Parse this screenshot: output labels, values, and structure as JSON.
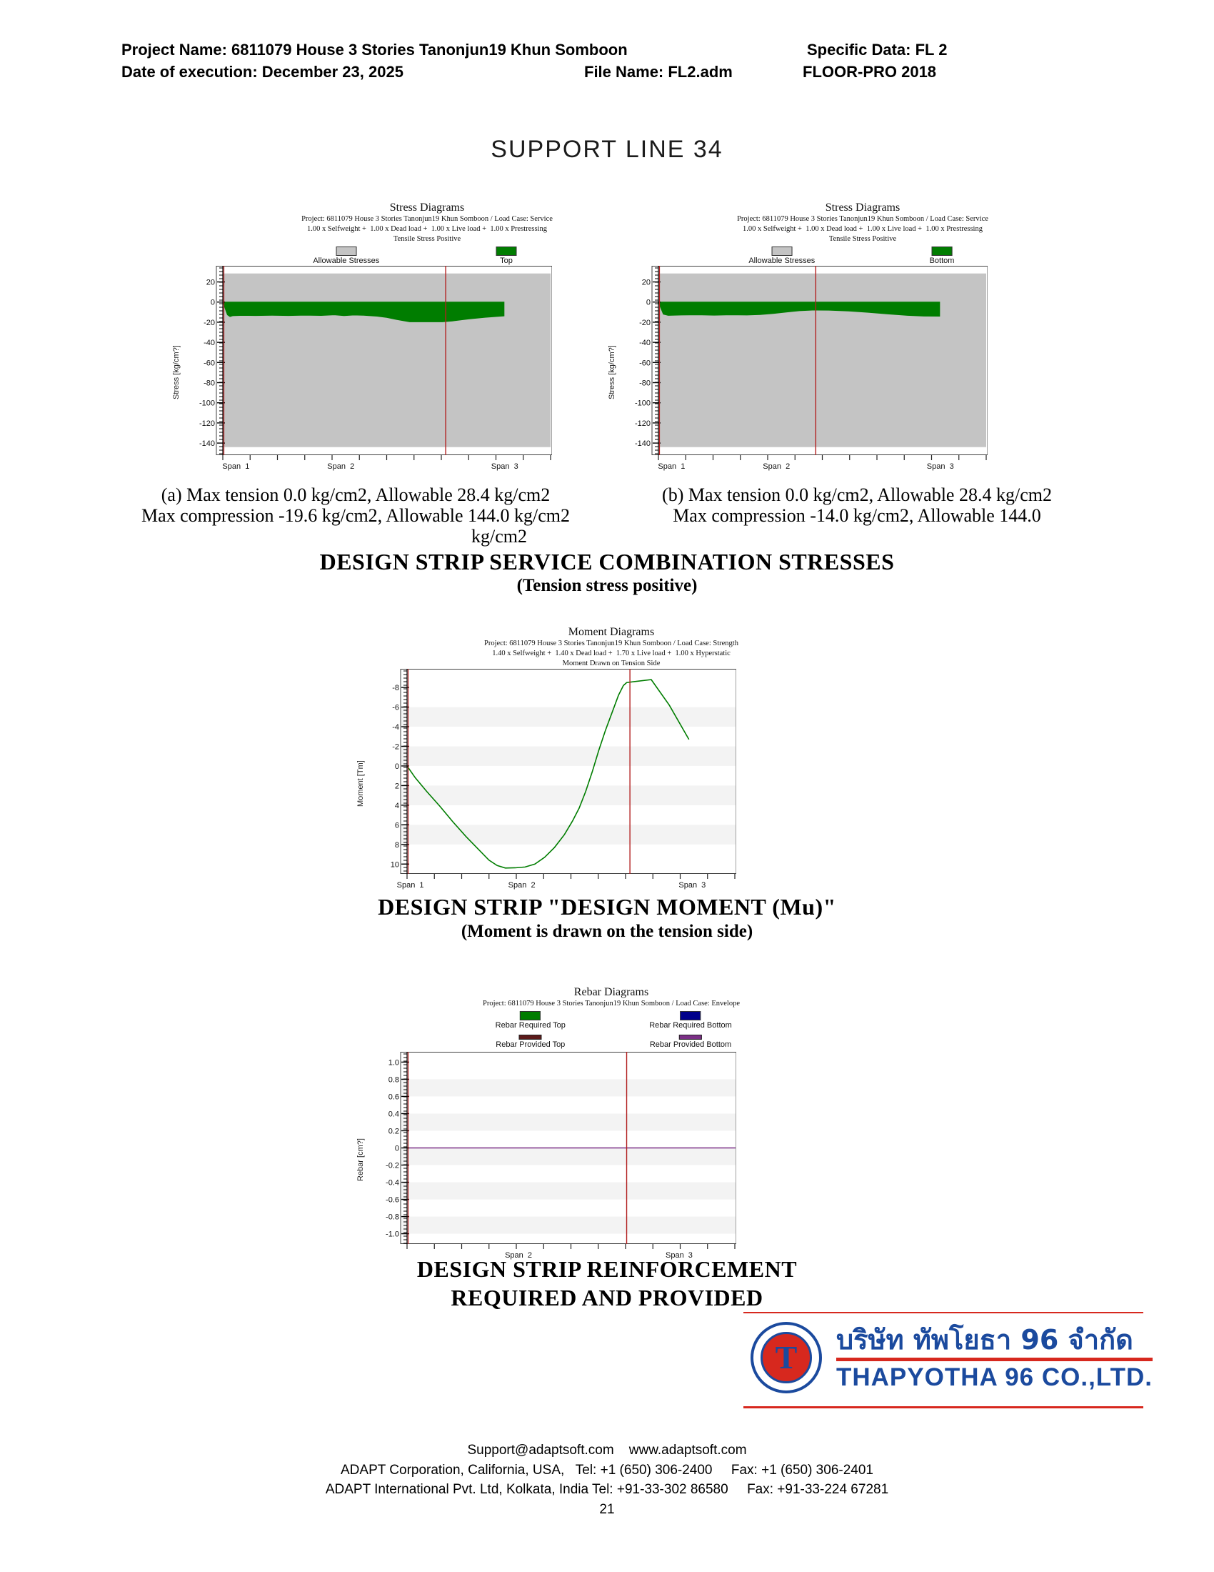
{
  "header": {
    "project": "Project Name: 6811079 House 3 Stories Tanonjun19 Khun Somboon",
    "specific_data": "Specific Data: FL 2",
    "date_line": "Date of execution: December 23, 2025",
    "file_name": "File Name: FL2.adm",
    "software": "FLOOR-PRO 2018"
  },
  "page_title": "SUPPORT LINE 34",
  "captions": {
    "a_line1": "(a) Max tension 0.0 kg/cm2, Allowable 28.4 kg/cm2",
    "a_line2": "Max compression -19.6 kg/cm2, Allowable 144.0 kg/cm2",
    "b_line1": "(b) Max tension 0.0 kg/cm2, Allowable 28.4 kg/cm2",
    "b_line2": "Max compression -14.0 kg/cm2, Allowable 144.0",
    "b_overflow": "kg/cm2"
  },
  "headings": {
    "stress_title": "DESIGN STRIP SERVICE COMBINATION STRESSES",
    "stress_sub": "(Tension stress positive)",
    "moment_title": "DESIGN STRIP \"DESIGN MOMENT (Mu)\"",
    "moment_sub": "(Moment is drawn on the tension side)",
    "rebar_title1": "DESIGN STRIP REINFORCEMENT",
    "rebar_title2": "REQUIRED AND PROVIDED"
  },
  "chart_data": [
    {
      "id": "stress-top",
      "type": "area",
      "title": "Stress Diagrams",
      "subtitle": "Project: 6811079 House 3 Stories Tanonjun19 Khun Somboon / Load Case: Service",
      "combo": "1.00 x Selfweight +  1.00 x Dead load +  1.00 x Live load +  1.00 x Prestressing",
      "note": "Tensile Stress Positive",
      "legend": [
        {
          "label": "Allowable Stresses",
          "color": "#c4c4c4"
        },
        {
          "label": "Top",
          "color": "#007d00"
        }
      ],
      "ylabel": "Stress [kg/cm?]",
      "yticks": [
        20,
        0,
        -20,
        -40,
        -60,
        -80,
        -100,
        -120,
        -140
      ],
      "ylim": [
        36,
        -152
      ],
      "allowable_band": [
        28.4,
        -144
      ],
      "band_color": "#c4c4c4",
      "series_color": "#007d00",
      "red": "#b22020",
      "axis_red_line": true,
      "red_line_x": 0.68,
      "outline": [
        [
          0,
          0
        ],
        [
          0.858,
          0
        ],
        [
          0.858,
          -13.8
        ],
        [
          0.8,
          -15.2
        ],
        [
          0.75,
          -16.8
        ],
        [
          0.7,
          -18.8
        ],
        [
          0.67,
          -19.6
        ],
        [
          0.57,
          -19.6
        ],
        [
          0.53,
          -17.3
        ],
        [
          0.5,
          -15.3
        ],
        [
          0.47,
          -14.0
        ],
        [
          0.43,
          -13.1
        ],
        [
          0.4,
          -12.9
        ],
        [
          0.37,
          -13.5
        ],
        [
          0.34,
          -12.7
        ],
        [
          0.3,
          -13.3
        ],
        [
          0.25,
          -13.0
        ],
        [
          0.2,
          -13.4
        ],
        [
          0.15,
          -13.1
        ],
        [
          0.1,
          -13.4
        ],
        [
          0.06,
          -13.2
        ],
        [
          0.03,
          -13.6
        ],
        [
          0.022,
          -14.4
        ],
        [
          0.014,
          -12.6
        ],
        [
          0,
          0
        ]
      ],
      "span_labels": [
        {
          "label": "Span  1",
          "x": 0.04
        },
        {
          "label": "Span  2",
          "x": 0.36
        },
        {
          "label": "Span  3",
          "x": 0.86
        }
      ],
      "max_tension": 0.0,
      "max_compression": -19.6
    },
    {
      "id": "stress-bottom",
      "type": "area",
      "title": "Stress Diagrams",
      "subtitle": "Project: 6811079 House 3 Stories Tanonjun19 Khun Somboon / Load Case: Service",
      "combo": "1.00 x Selfweight +  1.00 x Dead load +  1.00 x Live load +  1.00 x Prestressing",
      "note": "Tensile Stress Positive",
      "legend": [
        {
          "label": "Allowable Stresses",
          "color": "#c4c4c4"
        },
        {
          "label": "Bottom",
          "color": "#007d00"
        }
      ],
      "ylabel": "Stress [kg/cm?]",
      "yticks": [
        20,
        0,
        -20,
        -40,
        -60,
        -80,
        -100,
        -120,
        -140
      ],
      "ylim": [
        36,
        -152
      ],
      "allowable_band": [
        28.4,
        -144
      ],
      "band_color": "#c4c4c4",
      "series_color": "#007d00",
      "red": "#b22020",
      "axis_red_line": true,
      "red_line_x": 0.48,
      "outline": [
        [
          0,
          0
        ],
        [
          0.858,
          0
        ],
        [
          0.858,
          -14.0
        ],
        [
          0.81,
          -13.9
        ],
        [
          0.76,
          -13.2
        ],
        [
          0.7,
          -11.8
        ],
        [
          0.64,
          -10.2
        ],
        [
          0.58,
          -8.9
        ],
        [
          0.52,
          -8.1
        ],
        [
          0.47,
          -8.0
        ],
        [
          0.43,
          -8.6
        ],
        [
          0.39,
          -9.9
        ],
        [
          0.35,
          -11.4
        ],
        [
          0.31,
          -12.4
        ],
        [
          0.27,
          -12.9
        ],
        [
          0.22,
          -12.7
        ],
        [
          0.17,
          -13.0
        ],
        [
          0.12,
          -12.7
        ],
        [
          0.07,
          -12.9
        ],
        [
          0.03,
          -13.2
        ],
        [
          0.015,
          -12.0
        ],
        [
          0,
          0
        ]
      ],
      "span_labels": [
        {
          "label": "Span  1",
          "x": 0.04
        },
        {
          "label": "Span  2",
          "x": 0.36
        },
        {
          "label": "Span  3",
          "x": 0.86
        }
      ],
      "max_tension": 0.0,
      "max_compression": -14.0
    },
    {
      "id": "moment",
      "type": "line",
      "title": "Moment Diagrams",
      "subtitle": "Project: 6811079 House 3 Stories Tanonjun19 Khun Somboon / Load Case: Strength",
      "combo": "1.40 x Selfweight +  1.40 x Dead load +  1.70 x Live load +  1.00 x Hyperstatic",
      "note": "Moment Drawn on Tension Side",
      "ylabel": "Moment [Tm]",
      "yticks": [
        -8,
        -6,
        -4,
        -2,
        0,
        2,
        4,
        6,
        8,
        10
      ],
      "ylim": [
        -9.9,
        11
      ],
      "striped": true,
      "series_color": "#007d00",
      "red": "#b22020",
      "axis_red_line": true,
      "red_line_x": 0.68,
      "series": {
        "name": "Mu",
        "x": [
          0,
          0.025,
          0.06,
          0.1,
          0.14,
          0.18,
          0.215,
          0.25,
          0.275,
          0.3,
          0.33,
          0.36,
          0.39,
          0.42,
          0.45,
          0.48,
          0.505,
          0.525,
          0.545,
          0.565,
          0.585,
          0.605,
          0.625,
          0.645,
          0.66,
          0.67,
          0.745,
          0.8,
          0.86
        ],
        "y": [
          0,
          1.2,
          2.6,
          4.1,
          5.7,
          7.2,
          8.4,
          9.6,
          10.15,
          10.4,
          10.38,
          10.3,
          10.0,
          9.3,
          8.3,
          7.0,
          5.6,
          4.3,
          2.6,
          0.6,
          -1.6,
          -3.6,
          -5.4,
          -7.2,
          -8.2,
          -8.5,
          -8.8,
          -6.2,
          -2.7
        ]
      },
      "span_labels": [
        {
          "label": "Span  1",
          "x": 0.01
        },
        {
          "label": "Span  2",
          "x": 0.35
        },
        {
          "label": "Span  3",
          "x": 0.87
        }
      ]
    },
    {
      "id": "rebar",
      "type": "line",
      "title": "Rebar Diagrams",
      "subtitle": "Project: 6811079 House 3 Stories Tanonjun19 Khun Somboon / Load Case: Envelope",
      "legend": [
        {
          "label": "Rebar Required Top",
          "color": "#007d00",
          "style": "box"
        },
        {
          "label": "Rebar Required Bottom",
          "color": "#00008b",
          "style": "box"
        },
        {
          "label": "Rebar Provided Top",
          "color": "#5c1a1a",
          "style": "bar"
        },
        {
          "label": "Rebar Provided Bottom",
          "color": "#7b2f86",
          "style": "bar"
        }
      ],
      "ylabel": "Rebar [cm?]",
      "yticks": [
        1.0,
        0.8,
        0.6,
        0.4,
        0.2,
        0,
        -0.2,
        -0.4,
        -0.6,
        -0.8,
        -1.0
      ],
      "ytick_labels": [
        "1.0",
        "0.8",
        "0.6",
        "0.4",
        "0.2",
        "0",
        "-0.2",
        "-0.4",
        "-0.6",
        "-0.8",
        "-1.0"
      ],
      "ylim": [
        1.12,
        -1.12
      ],
      "striped": true,
      "series_color": "#007d00",
      "red": "#b22020",
      "axis_red_line": true,
      "red_line_x": 0.67,
      "zero_line_color": "#7b2f86",
      "series": {
        "name": "Rebar Provided Bottom",
        "x": [
          0,
          1
        ],
        "y": [
          0,
          0
        ]
      },
      "span_labels": [
        {
          "label": "Span  2",
          "x": 0.34
        },
        {
          "label": "Span  3",
          "x": 0.83
        }
      ]
    }
  ],
  "logo": {
    "monogram": "T",
    "thai_name": "บริษัท ทัพโยธา 96 จำกัด",
    "latin_name": "THAPYOTHA 96 CO.,LTD.",
    "blue": "#1b4a9e",
    "red": "#d7281e"
  },
  "footer": {
    "line1": "Support@adaptsoft.com    www.adaptsoft.com",
    "line2": "ADAPT Corporation, California, USA,   Tel: +1 (650) 306-2400     Fax: +1 (650) 306-2401",
    "line3": "ADAPT International Pvt. Ltd, Kolkata, India Tel: +91-33-302 86580     Fax: +91-33-224 67281",
    "page_number": "21"
  }
}
